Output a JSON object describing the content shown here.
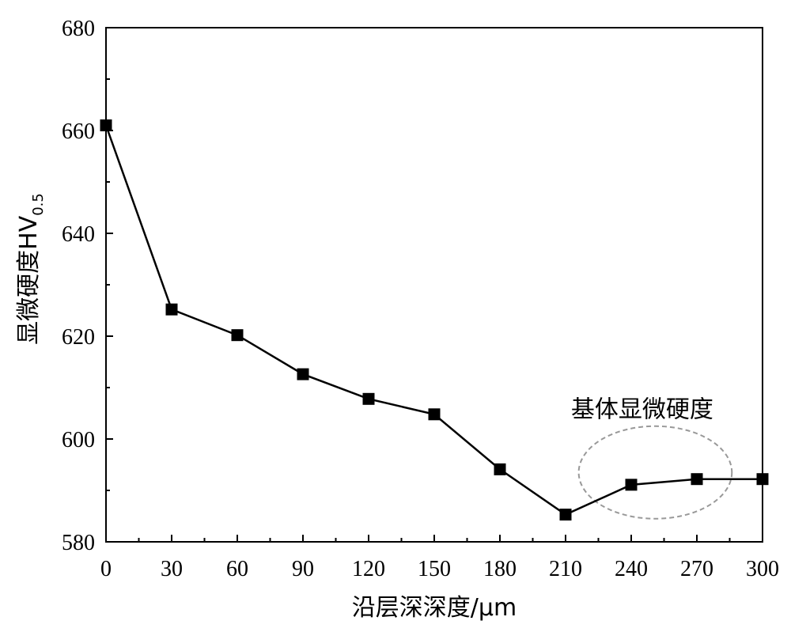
{
  "chart_data": {
    "type": "line",
    "title": "",
    "xlabel": "沿层深深度/μm",
    "ylabel": "显微硬度HV",
    "ylabel_subscript": "0.5",
    "xlim": [
      0,
      300
    ],
    "ylim": [
      580,
      680
    ],
    "xticks": [
      0,
      30,
      60,
      90,
      120,
      150,
      180,
      210,
      240,
      270,
      300
    ],
    "yticks": [
      580,
      600,
      620,
      640,
      660,
      680
    ],
    "grid": false,
    "marker": "square",
    "series": [
      {
        "x": [
          0,
          30,
          60,
          90,
          120,
          150,
          180,
          210,
          240,
          270,
          300
        ],
        "y": [
          661,
          625.2,
          620.2,
          612.6,
          607.8,
          604.8,
          594.1,
          585.3,
          591.1,
          592.2,
          592.2
        ]
      }
    ],
    "annotations": [
      {
        "text": "基体显微硬度",
        "x": 245,
        "y": 605.8
      }
    ],
    "highlight_ellipse": {
      "cx": 251,
      "cy": 593.5,
      "rx_data": 35,
      "ry_data": 9
    },
    "colors": {
      "line": "#000000",
      "marker": "#000000",
      "ellipse": "#999999"
    }
  }
}
